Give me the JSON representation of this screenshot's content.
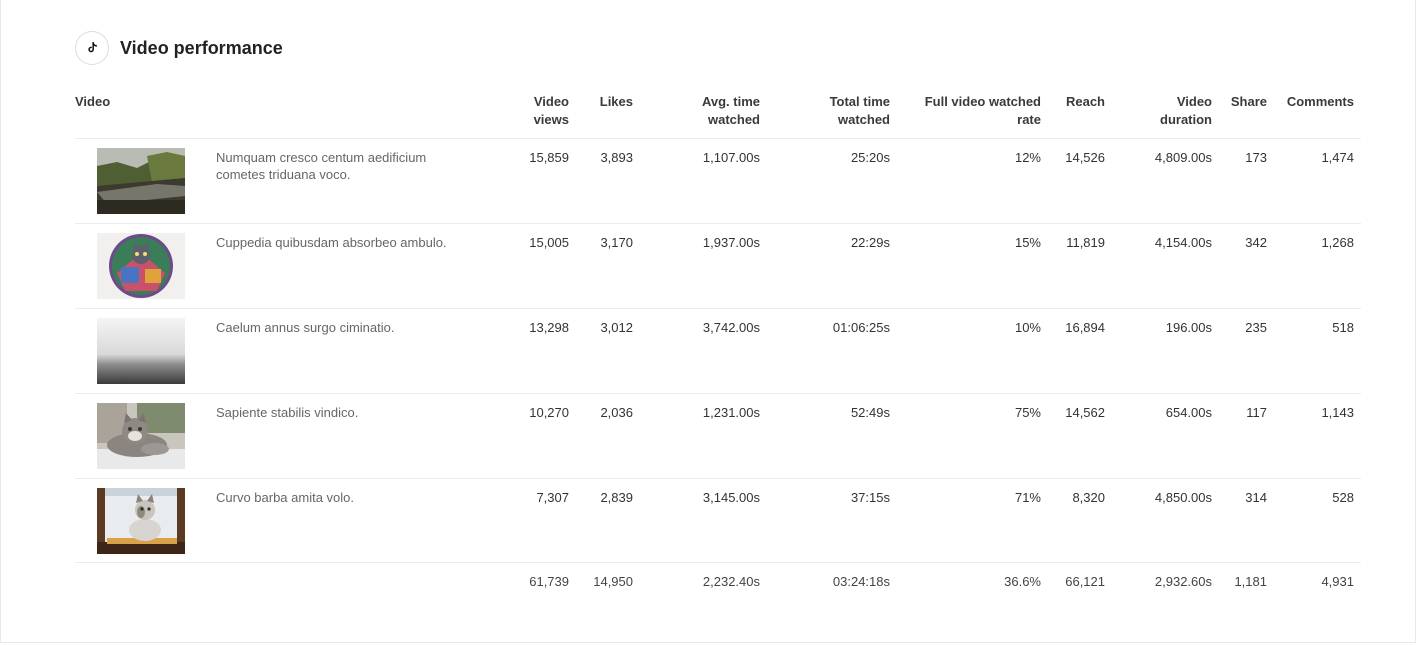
{
  "header": {
    "title": "Video performance",
    "icon": "tiktok-icon"
  },
  "columns": {
    "video": "Video",
    "views_1": "Video",
    "views_2": "views",
    "likes": "Likes",
    "avg_1": "Avg. time",
    "avg_2": "watched",
    "total_1": "Total time",
    "total_2": "watched",
    "full_1": "Full video watched",
    "full_2": "rate",
    "reach": "Reach",
    "duration_1": "Video",
    "duration_2": "duration",
    "share": "Share",
    "comments": "Comments"
  },
  "rows": [
    {
      "thumb": "landscape-river",
      "title": "Numquam cresco centum aedificium cometes triduana voco.",
      "views": "15,859",
      "likes": "3,893",
      "avg": "1,107.00s",
      "total": "25:20s",
      "rate": "12%",
      "reach": "14,526",
      "duration": "4,809.00s",
      "share": "173",
      "comments": "1,474"
    },
    {
      "thumb": "colorful-cat-art",
      "title": "Cuppedia quibusdam absorbeo ambulo.",
      "views": "15,005",
      "likes": "3,170",
      "avg": "1,937.00s",
      "total": "22:29s",
      "rate": "15%",
      "reach": "11,819",
      "duration": "4,154.00s",
      "share": "342",
      "comments": "1,268"
    },
    {
      "thumb": "foggy-sea",
      "title": "Caelum annus surgo ciminatio.",
      "views": "13,298",
      "likes": "3,012",
      "avg": "3,742.00s",
      "total": "01:06:25s",
      "rate": "10%",
      "reach": "16,894",
      "duration": "196.00s",
      "share": "235",
      "comments": "518"
    },
    {
      "thumb": "tabby-cat-lying",
      "title": "Sapiente stabilis vindico.",
      "views": "10,270",
      "likes": "2,036",
      "avg": "1,231.00s",
      "total": "52:49s",
      "rate": "75%",
      "reach": "14,562",
      "duration": "654.00s",
      "share": "117",
      "comments": "1,143"
    },
    {
      "thumb": "cat-sitting",
      "title": "Curvo barba amita volo.",
      "views": "7,307",
      "likes": "2,839",
      "avg": "3,145.00s",
      "total": "37:15s",
      "rate": "71%",
      "reach": "8,320",
      "duration": "4,850.00s",
      "share": "314",
      "comments": "528"
    }
  ],
  "totals": {
    "views": "61,739",
    "likes": "14,950",
    "avg": "2,232.40s",
    "total": "03:24:18s",
    "rate": "36.6%",
    "reach": "66,121",
    "duration": "2,932.60s",
    "share": "1,181",
    "comments": "4,931"
  }
}
